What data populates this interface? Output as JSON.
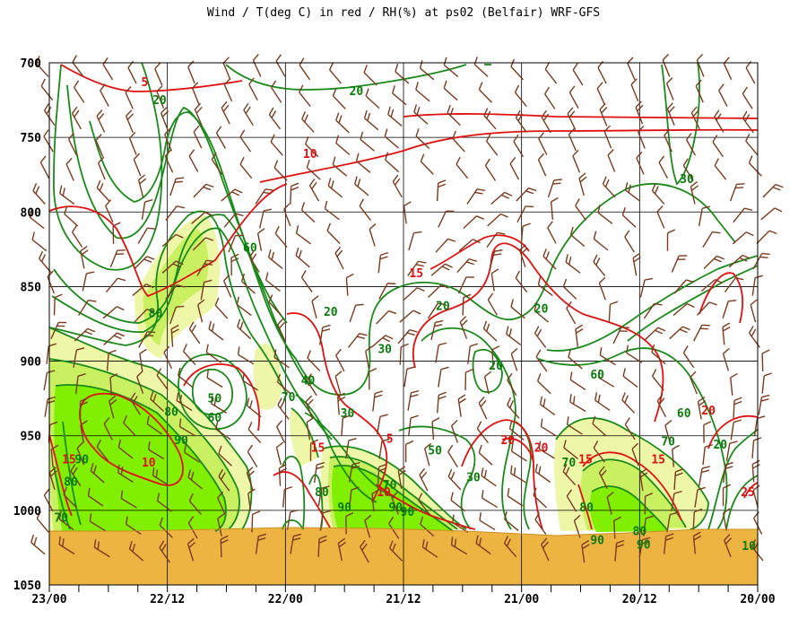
{
  "title": "Wind / T(deg C) in red / RH(%) at ps02 (Belfair)  WRF-GFS",
  "colors": {
    "temperature": "#e01010",
    "rh": "#1a8a1a",
    "rh_fill_70": "#eef7a8",
    "rh_fill_80": "#c8f060",
    "rh_fill_90": "#80f000",
    "ground": "#edb442",
    "wind_barb": "#7a3b1e",
    "grid": "#000000"
  },
  "chart_data": {
    "type": "time-height cross section",
    "title": "Wind / T(deg C) in red / RH(%) at ps02 (Belfair)  WRF-GFS",
    "y_axis": {
      "quantity": "pressure",
      "ticks": [
        700,
        750,
        800,
        850,
        900,
        950,
        1000,
        1050
      ],
      "range": [
        700,
        1050
      ],
      "direction": "increasing downward"
    },
    "x_axis": {
      "ticks": [
        "23/00",
        "22/12",
        "22/00",
        "21/12",
        "21/00",
        "20/12",
        "20/00"
      ],
      "direction": "time decreasing to the right",
      "range_hours": [
        0,
        72
      ]
    },
    "grid": true,
    "temperature_contour_labels": [
      {
        "value": "5",
        "x_hours": 9.7,
        "p": 715
      },
      {
        "value": "10",
        "x_hours": 26.5,
        "p": 763
      },
      {
        "value": "15",
        "x_hours": 37.3,
        "p": 843
      },
      {
        "value": "15",
        "x_hours": 27.3,
        "p": 960
      },
      {
        "value": "5",
        "x_hours": 34.6,
        "p": 954
      },
      {
        "value": "10",
        "x_hours": 34.0,
        "p": 990
      },
      {
        "value": "10",
        "x_hours": 10.1,
        "p": 970
      },
      {
        "value": "15",
        "x_hours": 2.0,
        "p": 968
      },
      {
        "value": "20",
        "x_hours": 50.0,
        "p": 960
      },
      {
        "value": "20",
        "x_hours": 46.6,
        "p": 955
      },
      {
        "value": "15",
        "x_hours": 54.5,
        "p": 968
      },
      {
        "value": "15",
        "x_hours": 61.9,
        "p": 968
      },
      {
        "value": "20",
        "x_hours": 67.0,
        "p": 935
      },
      {
        "value": "25",
        "x_hours": 71.0,
        "p": 990
      }
    ],
    "rh_contour_labels": [
      {
        "value": "20",
        "x_hours": 11.2,
        "p": 727
      },
      {
        "value": "20",
        "x_hours": 31.2,
        "p": 721
      },
      {
        "value": "30",
        "x_hours": 64.8,
        "p": 780
      },
      {
        "value": "60",
        "x_hours": 20.4,
        "p": 826
      },
      {
        "value": "80",
        "x_hours": 10.8,
        "p": 870
      },
      {
        "value": "20",
        "x_hours": 28.6,
        "p": 869
      },
      {
        "value": "30",
        "x_hours": 34.1,
        "p": 894
      },
      {
        "value": "20",
        "x_hours": 40.0,
        "p": 865
      },
      {
        "value": "20",
        "x_hours": 50.0,
        "p": 867
      },
      {
        "value": "20",
        "x_hours": 45.4,
        "p": 905
      },
      {
        "value": "60",
        "x_hours": 55.7,
        "p": 911
      },
      {
        "value": "50",
        "x_hours": 16.8,
        "p": 927
      },
      {
        "value": "60",
        "x_hours": 16.8,
        "p": 940
      },
      {
        "value": "80",
        "x_hours": 12.4,
        "p": 936
      },
      {
        "value": "90",
        "x_hours": 13.4,
        "p": 955
      },
      {
        "value": "70",
        "x_hours": 24.3,
        "p": 926
      },
      {
        "value": "40",
        "x_hours": 26.3,
        "p": 915
      },
      {
        "value": "30",
        "x_hours": 30.3,
        "p": 937
      },
      {
        "value": "50",
        "x_hours": 39.2,
        "p": 962
      },
      {
        "value": "90",
        "x_hours": 3.3,
        "p": 968
      },
      {
        "value": "80",
        "x_hours": 2.2,
        "p": 983
      },
      {
        "value": "70",
        "x_hours": 1.2,
        "p": 1007
      },
      {
        "value": "80",
        "x_hours": 27.7,
        "p": 990
      },
      {
        "value": "90",
        "x_hours": 30.0,
        "p": 1000
      },
      {
        "value": "70",
        "x_hours": 34.6,
        "p": 985
      },
      {
        "value": "90",
        "x_hours": 35.2,
        "p": 1000
      },
      {
        "value": "90",
        "x_hours": 36.4,
        "p": 1003
      },
      {
        "value": "30",
        "x_hours": 43.1,
        "p": 980
      },
      {
        "value": "70",
        "x_hours": 52.8,
        "p": 970
      },
      {
        "value": "80",
        "x_hours": 54.6,
        "p": 1000
      },
      {
        "value": "90",
        "x_hours": 55.7,
        "p": 1022
      },
      {
        "value": "80",
        "x_hours": 60.0,
        "p": 1016
      },
      {
        "value": "90",
        "x_hours": 60.4,
        "p": 1025
      },
      {
        "value": "70",
        "x_hours": 62.9,
        "p": 956
      },
      {
        "value": "60",
        "x_hours": 64.5,
        "p": 937
      },
      {
        "value": "20",
        "x_hours": 68.2,
        "p": 958
      },
      {
        "value": "10",
        "x_hours": 71.1,
        "p": 1026
      }
    ]
  }
}
